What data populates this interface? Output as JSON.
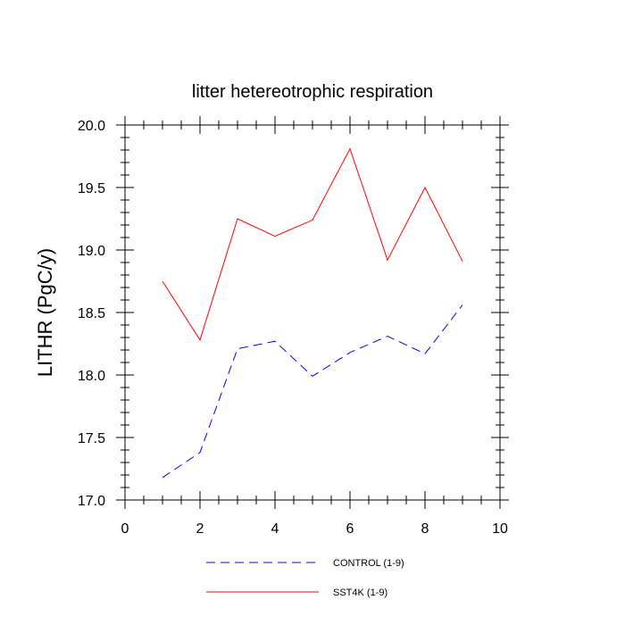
{
  "chart_data": {
    "type": "line",
    "title": "litter hetereotrophic respiration",
    "xlabel": "",
    "ylabel": "LITHR  (PgC/y)",
    "xlim": [
      0,
      10
    ],
    "ylim": [
      17.0,
      20.0
    ],
    "xticks": [
      0,
      2,
      4,
      6,
      8,
      10
    ],
    "xtick_labels": [
      "0",
      "2",
      "4",
      "6",
      "8",
      "10"
    ],
    "yticks": [
      17.0,
      17.5,
      18.0,
      18.5,
      19.0,
      19.5,
      20.0
    ],
    "ytick_labels": [
      "17.0",
      "17.5",
      "18.0",
      "18.5",
      "19.0",
      "19.5",
      "20.0"
    ],
    "grid": false,
    "legend_position": "bottom",
    "x": [
      1,
      2,
      3,
      4,
      5,
      6,
      7,
      8,
      9
    ],
    "series": [
      {
        "name": "CONTROL (1-9)",
        "values": [
          17.18,
          17.38,
          18.21,
          18.27,
          17.99,
          18.18,
          18.31,
          18.17,
          18.56
        ],
        "color": "#0000ff",
        "style": "dashed"
      },
      {
        "name": "SST4K (1-9)",
        "values": [
          18.75,
          18.28,
          19.25,
          19.11,
          19.24,
          19.81,
          18.92,
          19.5,
          18.91
        ],
        "color": "#ff0000",
        "style": "solid"
      }
    ]
  }
}
